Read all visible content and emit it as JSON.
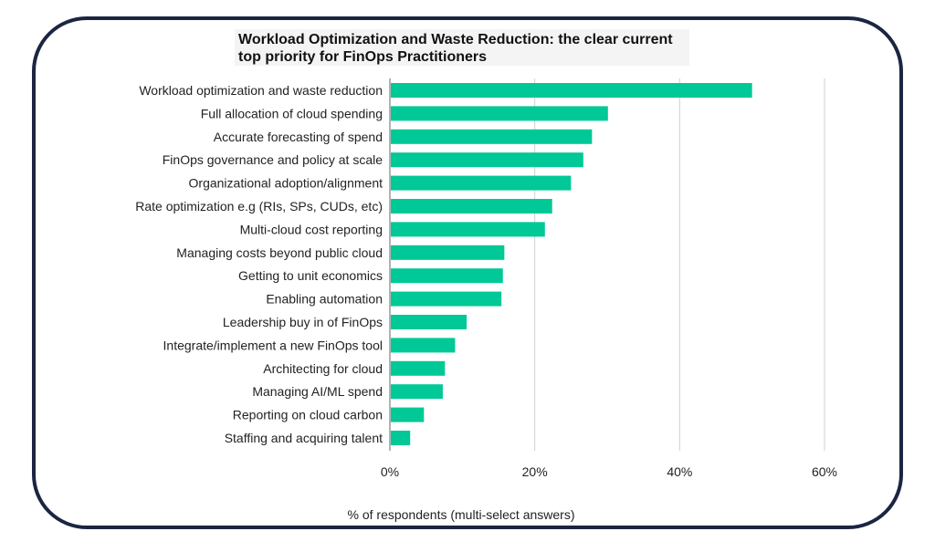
{
  "chart_data": {
    "type": "bar",
    "orientation": "horizontal",
    "title_lines": [
      "Workload Optimization and Waste Reduction: the clear current",
      "top priority for FinOps Practitioners"
    ],
    "categories": [
      "Workload optimization and waste reduction",
      "Full allocation of cloud spending",
      "Accurate forecasting of spend",
      "FinOps governance and policy at scale",
      "Organizational adoption/alignment",
      "Rate optimization e.g (RIs, SPs, CUDs, etc)",
      "Multi-cloud cost reporting",
      "Managing costs beyond public cloud",
      "Getting to unit economics",
      "Enabling automation",
      "Leadership buy in of FinOps",
      "Integrate/implement a new FinOps tool",
      "Architecting for cloud",
      "Managing AI/ML spend",
      "Reporting on cloud carbon",
      "Staffing and acquiring talent"
    ],
    "values": [
      50,
      30.1,
      27.9,
      26.7,
      25,
      22.4,
      21.4,
      15.8,
      15.6,
      15.4,
      10.6,
      9,
      7.6,
      7.3,
      4.7,
      2.8
    ],
    "xlim": [
      0,
      60
    ],
    "xticks": [
      0,
      20,
      40,
      60
    ],
    "xtick_labels": [
      "0%",
      "20%",
      "40%",
      "60%"
    ],
    "xlabel": "% of respondents (multi-select answers)",
    "ylabel": "",
    "grid": true,
    "bar_color": "#00c896",
    "grid_color": "#d0d0d0"
  }
}
